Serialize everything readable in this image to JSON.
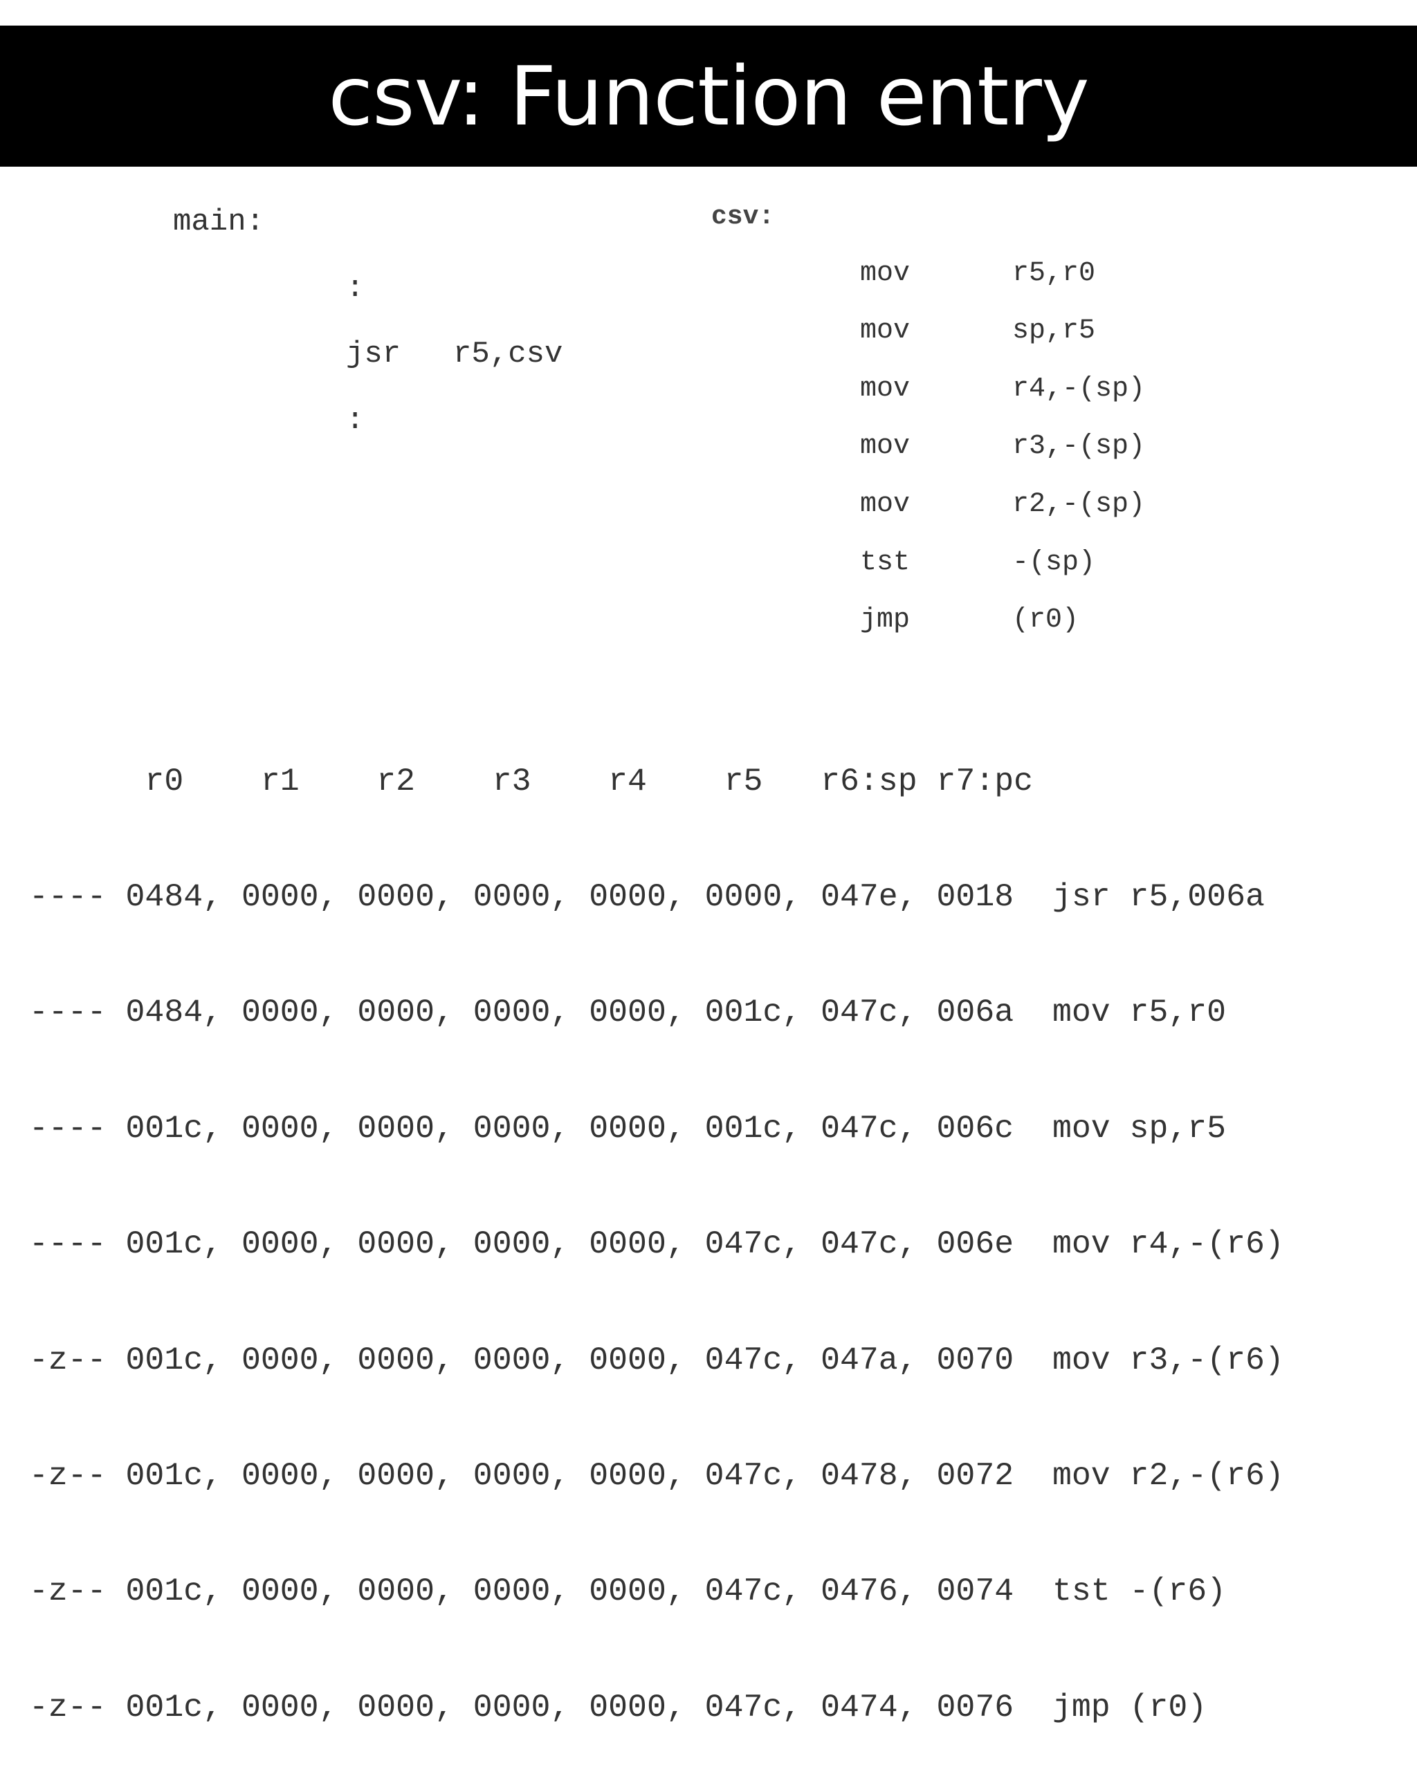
{
  "title": "csv: Function entry",
  "main": {
    "label": "main:",
    "lines": [
      {
        "op": ":",
        "arg": ""
      },
      {
        "op": "jsr",
        "arg": "r5,csv"
      },
      {
        "op": ":",
        "arg": ""
      }
    ]
  },
  "csv": {
    "label": "csv:",
    "lines": [
      {
        "op": "mov",
        "arg": "r5,r0"
      },
      {
        "op": "mov",
        "arg": "sp,r5"
      },
      {
        "op": "mov",
        "arg": "r4,-(sp)"
      },
      {
        "op": "mov",
        "arg": "r3,-(sp)"
      },
      {
        "op": "mov",
        "arg": "r2,-(sp)"
      },
      {
        "op": "tst",
        "arg": "-(sp)"
      },
      {
        "op": "jmp",
        "arg": "(r0)"
      }
    ]
  },
  "trace": {
    "header": "      r0    r1    r2    r3    r4    r5   r6:sp r7:pc",
    "rows": [
      "---- 0484, 0000, 0000, 0000, 0000, 0000, 047e, 0018  jsr r5,006a",
      "---- 0484, 0000, 0000, 0000, 0000, 001c, 047c, 006a  mov r5,r0",
      "---- 001c, 0000, 0000, 0000, 0000, 001c, 047c, 006c  mov sp,r5",
      "---- 001c, 0000, 0000, 0000, 0000, 047c, 047c, 006e  mov r4,-(r6)",
      "-z-- 001c, 0000, 0000, 0000, 0000, 047c, 047a, 0070  mov r3,-(r6)",
      "-z-- 001c, 0000, 0000, 0000, 0000, 047c, 0478, 0072  mov r2,-(r6)",
      "-z-- 001c, 0000, 0000, 0000, 0000, 047c, 0476, 0074  tst -(r6)",
      "-z-- 001c, 0000, 0000, 0000, 0000, 047c, 0474, 0076  jmp (r0)"
    ]
  }
}
